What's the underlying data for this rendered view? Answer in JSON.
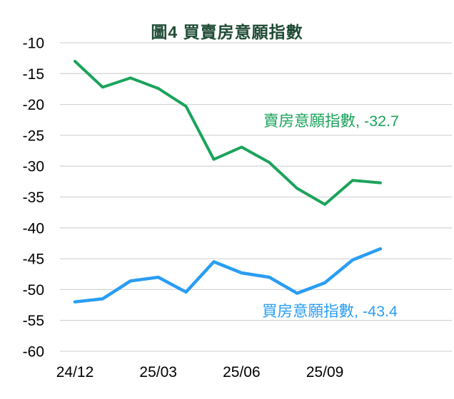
{
  "title": "圖4  買賣房意願指數",
  "colors": {
    "title": "#1f4b35",
    "sell_line": "#1aa35a",
    "buy_line": "#2a9df4",
    "gridline": "#d6d6d6",
    "axis_text": "#000000",
    "background": "#ffffff"
  },
  "chart_data": {
    "type": "line",
    "title": "圖4  買賣房意願指數",
    "categories": [
      "24/12",
      "25/01",
      "25/02",
      "25/03",
      "25/04",
      "25/05",
      "25/06",
      "25/07",
      "25/08",
      "25/09",
      "25/10",
      "25/11"
    ],
    "x_tick_labels": [
      "24/12",
      "25/03",
      "25/06",
      "25/09"
    ],
    "x_tick_indices": [
      0,
      3,
      6,
      9
    ],
    "yticks": [
      -10,
      -15,
      -20,
      -25,
      -30,
      -35,
      -40,
      -45,
      -50,
      -55,
      -60
    ],
    "ylim": [
      -60,
      -10
    ],
    "grid": true,
    "legend_position": "inline-annotations",
    "xlabel": "",
    "ylabel": "",
    "series": [
      {
        "name": "賣房意願指數",
        "annotation": "賣房意願指數, -32.7",
        "latest_value": -32.7,
        "color": "#1aa35a",
        "values": [
          -13.0,
          -17.2,
          -15.7,
          -17.4,
          -20.3,
          -28.9,
          -26.9,
          -29.4,
          -33.6,
          -36.2,
          -32.3,
          -32.7
        ]
      },
      {
        "name": "買房意願指數",
        "annotation": "買房意願指數, -43.4",
        "latest_value": -43.4,
        "color": "#2a9df4",
        "values": [
          -52.0,
          -51.5,
          -48.6,
          -48.0,
          -50.4,
          -45.5,
          -47.3,
          -48.0,
          -50.6,
          -48.9,
          -45.2,
          -43.4
        ]
      }
    ]
  }
}
